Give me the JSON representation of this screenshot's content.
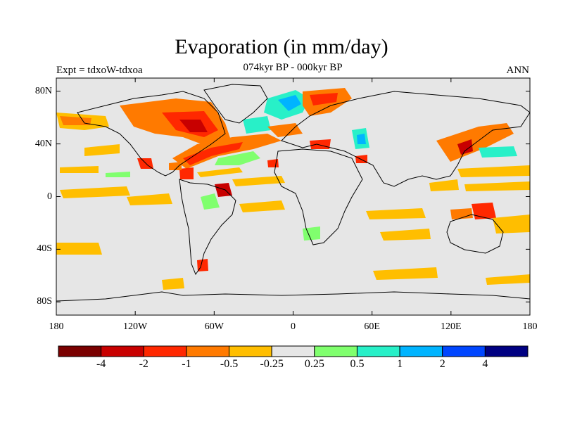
{
  "title": "Evaporation (in mm/day)",
  "subtitle": "074kyr BP - 000kyr BP",
  "left_label": "Expt = tdxoW-tdxoa",
  "right_label": "ANN",
  "x_ticks": [
    "180",
    "120W",
    "60W",
    "0",
    "60E",
    "120E",
    "180"
  ],
  "y_ticks": [
    "80N",
    "40N",
    "0",
    "40S",
    "80S"
  ],
  "colorbar": {
    "colors": [
      "#7a0000",
      "#c80000",
      "#ff2800",
      "#ff7a00",
      "#ffbe00",
      "#e6e6e6",
      "#80ff6e",
      "#28f0c8",
      "#00b4ff",
      "#0046ff",
      "#000082"
    ],
    "labels": [
      "-4",
      "-2",
      "-1",
      "-0.5",
      "-0.25",
      "0.25",
      "0.5",
      "1",
      "2",
      "4"
    ]
  },
  "chart_data": {
    "type": "heatmap",
    "title": "Evaporation (in mm/day)",
    "subtitle": "074kyr BP - 000kyr BP",
    "xlim": [
      -180,
      180
    ],
    "ylim": [
      -90,
      90
    ],
    "levels": [
      -4,
      -2,
      -1,
      -0.5,
      -0.25,
      0.25,
      0.5,
      1,
      2,
      4
    ],
    "features": [
      {
        "lon": -65,
        "lat": 58,
        "value": -2
      },
      {
        "lon": -45,
        "lat": 68,
        "value": -1
      },
      {
        "lon": -20,
        "lat": 72,
        "value": 1
      },
      {
        "lon": 5,
        "lat": 70,
        "value": -1
      },
      {
        "lon": -70,
        "lat": 32,
        "value": -2
      },
      {
        "lon": -30,
        "lat": 30,
        "value": 0.5
      },
      {
        "lon": 50,
        "lat": 42,
        "value": 1
      },
      {
        "lon": 140,
        "lat": 36,
        "value": -2
      },
      {
        "lon": 155,
        "lat": 30,
        "value": 0.5
      },
      {
        "lon": -50,
        "lat": 5,
        "value": -2
      },
      {
        "lon": -65,
        "lat": -5,
        "value": 0.5
      },
      {
        "lon": 145,
        "lat": -8,
        "value": -2
      },
      {
        "lon": -160,
        "lat": -38,
        "value": -0.25
      },
      {
        "lon": 80,
        "lat": -15,
        "value": -0.25
      }
    ]
  }
}
